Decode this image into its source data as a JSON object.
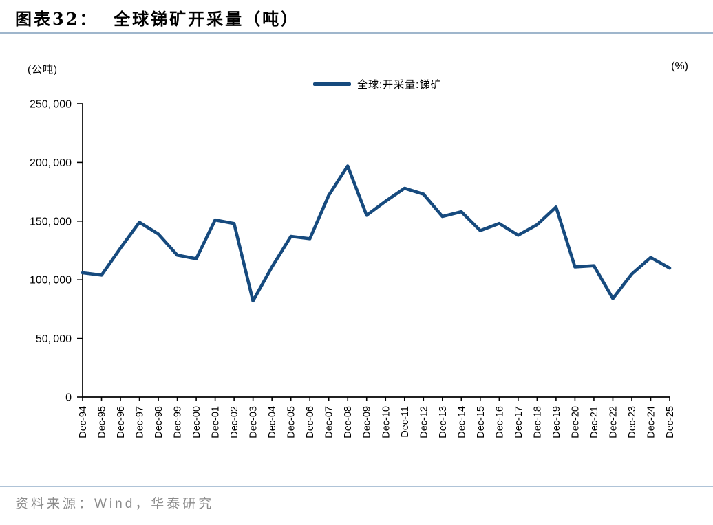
{
  "header": {
    "title": "图表32：  全球锑矿开采量（吨）"
  },
  "chart_data": {
    "type": "line",
    "title": "图表32： 全球锑矿开采量（吨）",
    "unit_left": "(公吨)",
    "unit_right": "(%)",
    "legend_position": "top-center",
    "grid": false,
    "line_color": "#164a7e",
    "ylim": [
      0,
      250000
    ],
    "yticks": [
      0,
      50000,
      100000,
      150000,
      200000,
      250000
    ],
    "x_tick_rotation": -90,
    "x": [
      "Dec-94",
      "Dec-95",
      "Dec-96",
      "Dec-97",
      "Dec-98",
      "Dec-99",
      "Dec-00",
      "Dec-01",
      "Dec-02",
      "Dec-03",
      "Dec-04",
      "Dec-05",
      "Dec-06",
      "Dec-07",
      "Dec-08",
      "Dec-09",
      "Dec-10",
      "Dec-11",
      "Dec-12",
      "Dec-13",
      "Dec-14",
      "Dec-15",
      "Dec-16",
      "Dec-17",
      "Dec-18",
      "Dec-19",
      "Dec-20",
      "Dec-21",
      "Dec-22",
      "Dec-23",
      "Dec-24",
      "Dec-25"
    ],
    "series": [
      {
        "name": "全球:开采量:锑矿",
        "values": [
          106000,
          104000,
          127000,
          149000,
          139000,
          121000,
          118000,
          151000,
          148000,
          82000,
          111000,
          137000,
          135000,
          172000,
          197000,
          155000,
          167000,
          178000,
          173000,
          154000,
          158000,
          142000,
          148000,
          138000,
          147000,
          162000,
          111000,
          112000,
          84000,
          105000,
          119000,
          110000
        ]
      }
    ]
  },
  "footer": {
    "source": "资料来源：Wind，华泰研究"
  }
}
